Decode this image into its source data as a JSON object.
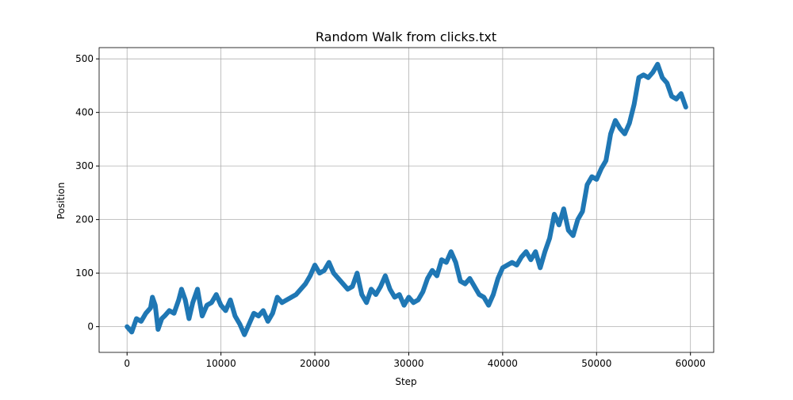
{
  "chart_data": {
    "type": "line",
    "title": "Random Walk from clicks.txt",
    "x_label": "Step",
    "y_label": "Position",
    "x": [
      0,
      500,
      1000,
      1500,
      2000,
      2500,
      2700,
      3000,
      3300,
      3700,
      4000,
      4500,
      5000,
      5500,
      5800,
      6200,
      6600,
      7000,
      7500,
      8000,
      8500,
      9000,
      9500,
      10000,
      10500,
      11000,
      11500,
      12000,
      12500,
      13000,
      13500,
      14000,
      14500,
      15000,
      15500,
      16000,
      16500,
      17000,
      17500,
      18000,
      18500,
      19000,
      19500,
      20000,
      20500,
      21000,
      21500,
      22000,
      22500,
      23000,
      23500,
      24000,
      24500,
      25000,
      25500,
      26000,
      26500,
      27000,
      27500,
      28000,
      28500,
      29000,
      29500,
      30000,
      30500,
      31000,
      31500,
      32000,
      32500,
      33000,
      33500,
      34000,
      34500,
      35000,
      35500,
      36000,
      36500,
      37000,
      37500,
      38000,
      38500,
      39000,
      39500,
      40000,
      40500,
      41000,
      41500,
      42000,
      42500,
      43000,
      43500,
      44000,
      44500,
      45000,
      45500,
      46000,
      46500,
      47000,
      47500,
      48000,
      48500,
      49000,
      49500,
      50000,
      50500,
      51000,
      51500,
      52000,
      52500,
      53000,
      53500,
      54000,
      54500,
      55000,
      55500,
      56000,
      56500,
      57000,
      57500,
      58000,
      58500,
      59000,
      59500
    ],
    "series": [
      {
        "name": "Position",
        "color": "#1f77b4",
        "values": [
          0,
          -10,
          15,
          10,
          25,
          35,
          55,
          40,
          -5,
          15,
          20,
          30,
          25,
          50,
          70,
          50,
          15,
          45,
          70,
          20,
          40,
          45,
          60,
          40,
          30,
          50,
          20,
          5,
          -15,
          5,
          25,
          20,
          30,
          10,
          25,
          55,
          45,
          50,
          55,
          60,
          70,
          80,
          95,
          115,
          100,
          105,
          120,
          100,
          90,
          80,
          70,
          75,
          100,
          60,
          45,
          70,
          60,
          75,
          95,
          70,
          55,
          60,
          40,
          55,
          45,
          50,
          65,
          90,
          105,
          95,
          125,
          120,
          140,
          120,
          85,
          80,
          90,
          75,
          60,
          55,
          40,
          60,
          90,
          110,
          115,
          120,
          115,
          130,
          140,
          125,
          140,
          110,
          140,
          165,
          210,
          190,
          220,
          180,
          170,
          200,
          215,
          265,
          280,
          275,
          295,
          310,
          360,
          385,
          370,
          360,
          380,
          415,
          465,
          470,
          465,
          475,
          490,
          465,
          455,
          430,
          425,
          435,
          410
        ]
      }
    ],
    "xlim": [
      -2975,
      62475
    ],
    "ylim": [
      -48,
      521
    ],
    "xticks": [
      0,
      10000,
      20000,
      30000,
      40000,
      50000,
      60000
    ],
    "yticks": [
      0,
      100,
      200,
      300,
      400,
      500
    ],
    "grid": true
  }
}
